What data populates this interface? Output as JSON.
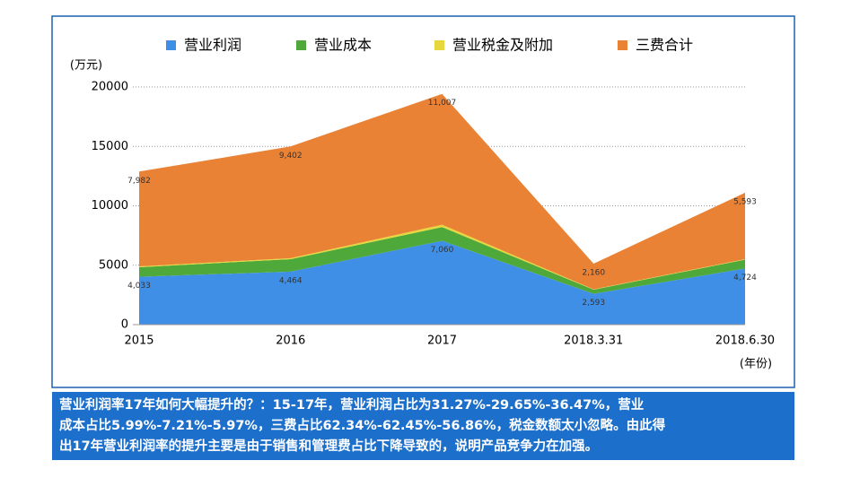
{
  "chart_data": {
    "type": "stacked_area",
    "y_unit_label": "(万元)",
    "x_unit_label": "(年份)",
    "categories": [
      "2015",
      "2016",
      "2017",
      "2018.3.31",
      "2018.6.30"
    ],
    "ylim": [
      0,
      20000
    ],
    "yticks": [
      0,
      5000,
      10000,
      15000,
      20000
    ],
    "grid": true,
    "series": [
      {
        "name": "营业利润",
        "color": "#3f8fe6",
        "values": [
          4033,
          4464,
          7060,
          2593,
          4724
        ],
        "value_labels": [
          "4,033",
          "4,464",
          "7,060",
          "2,593",
          "4,724"
        ]
      },
      {
        "name": "营业成本",
        "color": "#4fa93a",
        "values": [
          800,
          1050,
          1150,
          350,
          750
        ]
      },
      {
        "name": "营业税金及附加",
        "color": "#e6d83c",
        "values": [
          70,
          80,
          200,
          30,
          40
        ]
      },
      {
        "name": "三费合计",
        "color": "#ea8236",
        "values": [
          7982,
          9402,
          11007,
          2160,
          5593
        ],
        "value_labels": [
          "7,982",
          "9,402",
          "11,007",
          "2,160",
          "5,593"
        ]
      }
    ]
  },
  "text_box": {
    "lines": [
      "营业利润率17年如何大幅提升的？：15-17年，营业利润占比为31.27%-29.65%-36.47%，营业",
      "成本占比5.99%-7.21%-5.97%，三费占比62.34%-62.45%-56.86%，税金数额太小忽略。由此得",
      "出17年营业利润率的提升主要是由于销售和管理费占比下降导致的，说明产品竞争力在加强。"
    ]
  }
}
